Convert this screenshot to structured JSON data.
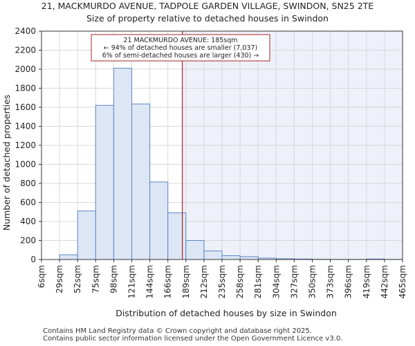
{
  "header": {
    "title": "21, MACKMURDO AVENUE, TADPOLE GARDEN VILLAGE, SWINDON, SN25 2TE",
    "subtitle": "Size of property relative to detached houses in Swindon"
  },
  "footer": {
    "line1": "Contains HM Land Registry data © Crown copyright and database right 2025.",
    "line2": "Contains public sector information licensed under the Open Government Licence v3.0."
  },
  "chart_data": {
    "type": "bar",
    "title": "21, MACKMURDO AVENUE, TADPOLE GARDEN VILLAGE, SWINDON, SN25 2TE",
    "subtitle": "Size of property relative to detached houses in Swindon",
    "xlabel": "Distribution of detached houses by size in Swindon",
    "ylabel": "Number of detached properties",
    "bin_edges": [
      "6sqm",
      "29sqm",
      "52sqm",
      "75sqm",
      "98sqm",
      "121sqm",
      "144sqm",
      "166sqm",
      "189sqm",
      "212sqm",
      "235sqm",
      "258sqm",
      "281sqm",
      "304sqm",
      "327sqm",
      "350sqm",
      "373sqm",
      "396sqm",
      "419sqm",
      "442sqm",
      "465sqm"
    ],
    "values": [
      0,
      50,
      510,
      1620,
      2010,
      1635,
      815,
      490,
      200,
      90,
      40,
      30,
      15,
      8,
      5,
      2,
      1,
      1,
      5,
      1
    ],
    "ylim": [
      0,
      2400
    ],
    "yticks": [
      0,
      200,
      400,
      600,
      800,
      1000,
      1200,
      1400,
      1600,
      1800,
      2000,
      2200,
      2400
    ],
    "grid": true,
    "colors": {
      "bar_fill": "#dce6f5",
      "bar_stroke": "#5b86c5",
      "highlight_bg": "#eef1fa",
      "marker": "#b22222",
      "grid": "#d8d8d8"
    },
    "marker": {
      "value_sqm": 185,
      "bin_position": 7.8,
      "annotation": [
        "21 MACKMURDO AVENUE: 185sqm",
        "← 94% of detached houses are smaller (7,037)",
        "6% of semi-detached houses are larger (430) →"
      ]
    }
  }
}
